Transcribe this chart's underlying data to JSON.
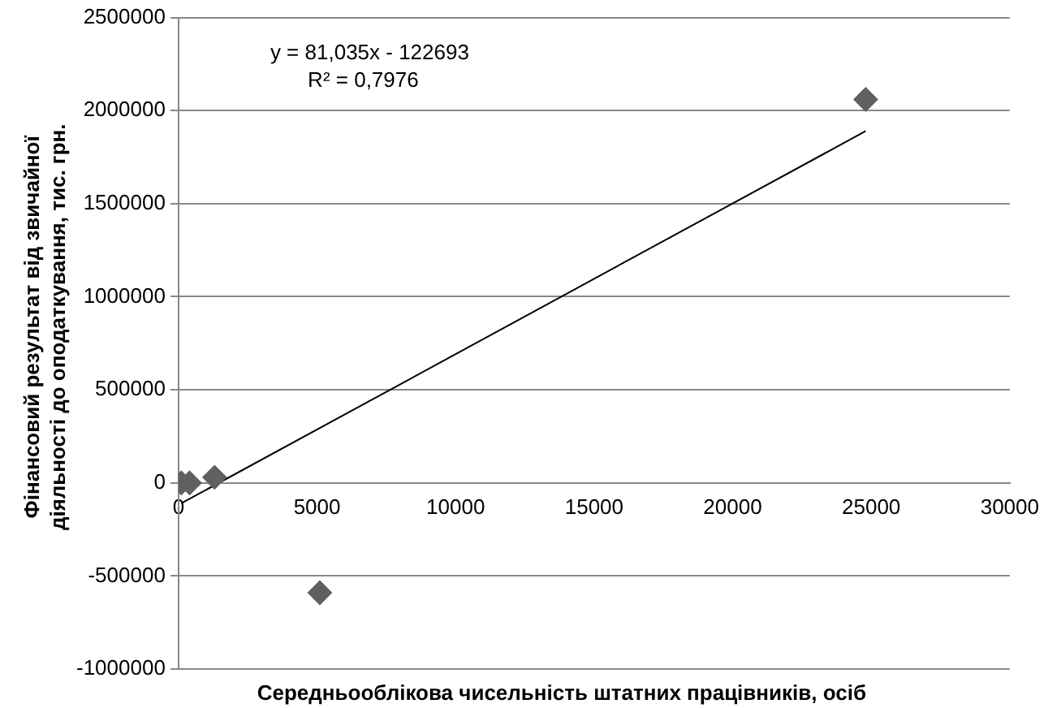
{
  "chart_data": {
    "type": "scatter",
    "xlabel": "Середньооблікова чисельність штатних працівників, осіб",
    "ylabel": "Фінансовий результат від звичайної діяльності до оподаткування, тис. грн.",
    "xlim": [
      0,
      30000
    ],
    "xticks": [
      0,
      5000,
      10000,
      15000,
      20000,
      25000,
      30000
    ],
    "ylim": [
      -1000000,
      2500000
    ],
    "yticks": [
      -1000000,
      -500000,
      0,
      500000,
      1000000,
      1500000,
      2000000,
      2500000
    ],
    "grid": "y",
    "marker": "diamond",
    "series": [
      {
        "color": "#606060",
        "x": [
          100,
          400,
          1300,
          5100,
          24800
        ],
        "values": [
          0,
          0,
          30000,
          -590000,
          2060000
        ]
      },
      {
        "type": "line",
        "marker": "none",
        "color": "#000000",
        "x": [
          100,
          24800
        ],
        "values": [
          -110000,
          1890000
        ]
      }
    ],
    "annotations": [
      "y = 81,035x - 122693",
      "R² = 0,7976"
    ]
  }
}
